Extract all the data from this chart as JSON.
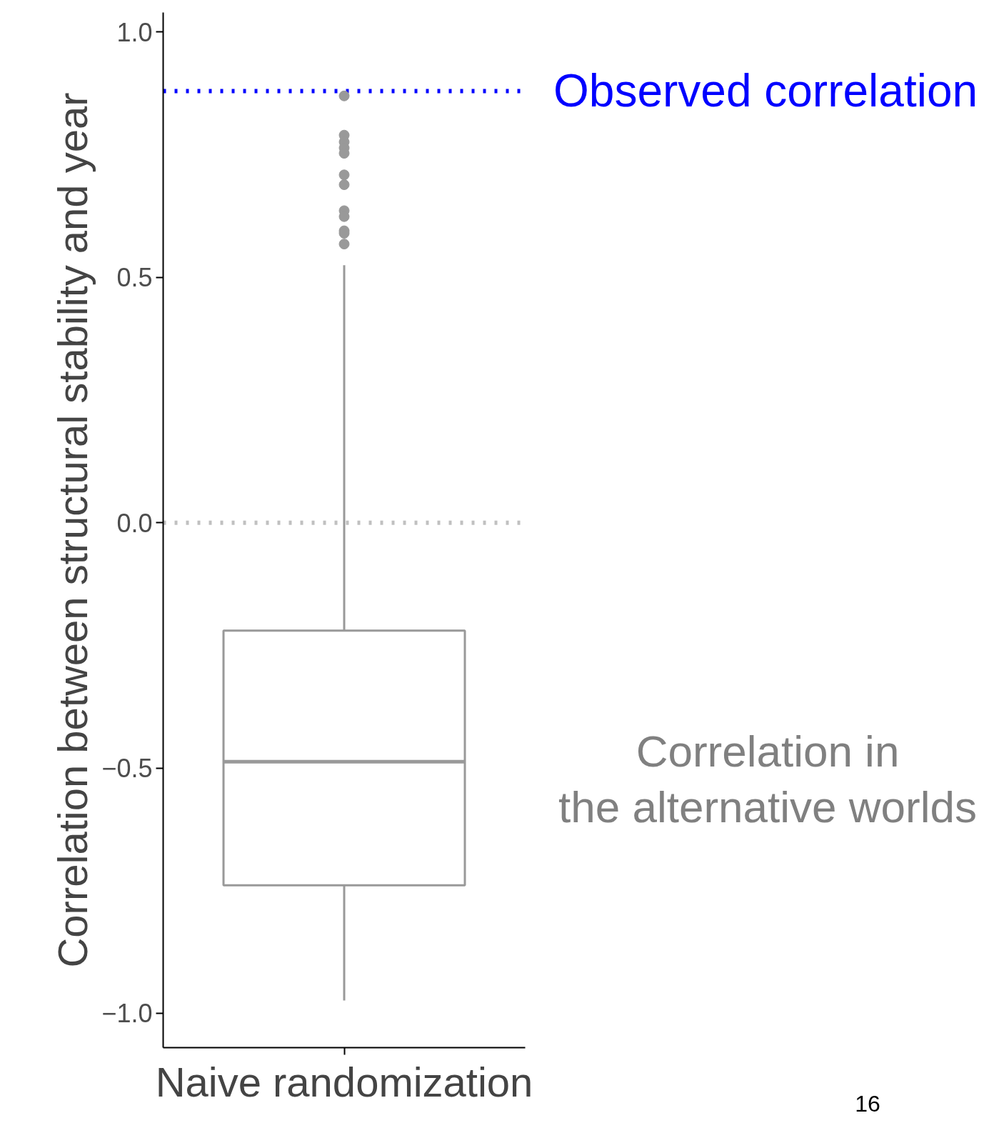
{
  "chart_data": {
    "type": "box",
    "ylabel": "Correlation between structural stability and year",
    "xlabel": "Naive randomization",
    "categories": [
      null
    ],
    "boxes": [
      {
        "low": -0.974,
        "q1": -0.739,
        "median": -0.487,
        "q3": -0.22,
        "high": 0.525,
        "outliers": [
          0.87,
          0.79,
          0.776,
          0.764,
          0.753,
          0.709,
          0.689,
          0.636,
          0.624,
          0.595,
          0.59,
          0.568
        ]
      }
    ],
    "color": "#999999",
    "ylim": [
      -1.07,
      1.04
    ],
    "yticks": [
      {
        "value": -1,
        "label": "−1.0"
      },
      {
        "value": -0.5,
        "label": "−0.5"
      },
      {
        "value": 0,
        "label": "0.0"
      },
      {
        "value": 0.5,
        "label": "0.5"
      },
      {
        "value": 1,
        "label": "1.0"
      }
    ],
    "tick_labels": "y",
    "grid": false,
    "ref_lines": [
      {
        "axis": "y",
        "value": 0.88,
        "label": "Observed correlation",
        "color": "#0000ff",
        "line_style": "dotted"
      },
      {
        "axis": "y",
        "value": 0,
        "label": null,
        "color": "#c0c0c0",
        "line_style": "dotted"
      }
    ],
    "annotations": [
      "Correlation in\nthe alternative worlds",
      "16"
    ]
  }
}
